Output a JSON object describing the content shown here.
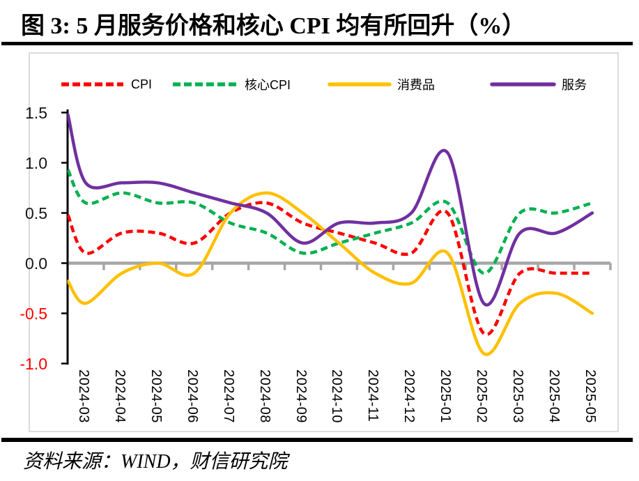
{
  "figure": {
    "title": "图 3: 5 月服务价格和核心 CPI 均有所回升（%）",
    "source_note": "资料来源：WIND，财信研究院"
  },
  "chart_data": {
    "type": "line",
    "smoothed": true,
    "grid": "off",
    "legend_position": "top",
    "title": "图 3: 5 月服务价格和核心 CPI 均有所回升（%）",
    "categories": [
      "2024-03",
      "2024-04",
      "2024-05",
      "2024-06",
      "2024-07",
      "2024-08",
      "2024-09",
      "2024-10",
      "2024-11",
      "2024-12",
      "2025-01",
      "2025-02",
      "2025-03",
      "2025-04",
      "2025-05"
    ],
    "series": [
      {
        "name": "CPI",
        "color": "#ff0000",
        "line_style": "dashed",
        "axis_edge_value": 0.48,
        "values": [
          0.1,
          0.3,
          0.3,
          0.2,
          0.5,
          0.6,
          0.4,
          0.3,
          0.2,
          0.1,
          0.5,
          -0.7,
          -0.1,
          -0.1,
          -0.1
        ]
      },
      {
        "name": "核心CPI",
        "color": "#00b050",
        "line_style": "dashed",
        "axis_edge_value": 0.93,
        "values": [
          0.6,
          0.7,
          0.6,
          0.6,
          0.4,
          0.3,
          0.1,
          0.2,
          0.3,
          0.4,
          0.6,
          -0.1,
          0.5,
          0.5,
          0.6
        ]
      },
      {
        "name": "消费品",
        "color": "#ffc000",
        "line_style": "solid",
        "axis_edge_value": -0.18,
        "values": [
          -0.4,
          -0.1,
          0.0,
          -0.1,
          0.5,
          0.7,
          0.5,
          0.2,
          -0.1,
          -0.2,
          0.1,
          -0.9,
          -0.4,
          -0.3,
          -0.5
        ]
      },
      {
        "name": "服务",
        "color": "#7030a0",
        "line_style": "solid",
        "axis_edge_value": 1.48,
        "values": [
          0.8,
          0.8,
          0.8,
          0.7,
          0.6,
          0.5,
          0.2,
          0.4,
          0.4,
          0.5,
          1.1,
          -0.4,
          0.3,
          0.3,
          0.5
        ]
      }
    ],
    "y_axis": {
      "ticks": [
        1.5,
        1.0,
        0.5,
        0.0,
        -0.5,
        -1.0
      ],
      "min": -1.0,
      "max": 1.5,
      "positive_label_color": "#151515",
      "negative_label_color": "#ff0000"
    },
    "x_axis": {
      "zero_line_color": "#a6a6a6",
      "axis_color": "#000000"
    },
    "ylim": [
      -1.0,
      1.5
    ]
  }
}
